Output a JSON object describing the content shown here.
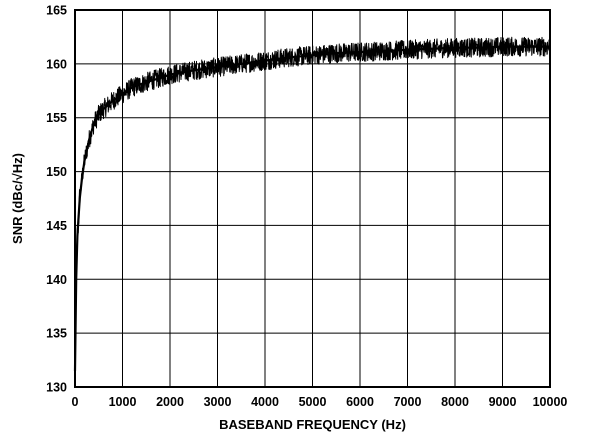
{
  "chart_data": {
    "type": "line",
    "title": "",
    "xlabel": "BASEBAND FREQUENCY (Hz)",
    "ylabel": "SNR (dBc/√Hz)",
    "xlim": [
      0,
      10000
    ],
    "ylim": [
      130,
      165
    ],
    "xticks": [
      0,
      1000,
      2000,
      3000,
      4000,
      5000,
      6000,
      7000,
      8000,
      9000,
      10000
    ],
    "yticks": [
      130,
      135,
      140,
      145,
      150,
      155,
      160,
      165
    ],
    "grid": true,
    "line_color": "#000000",
    "series": [
      {
        "x": [
          0,
          25,
          50,
          100,
          150,
          200,
          300,
          400,
          500,
          600,
          700,
          800,
          1000,
          1200,
          1500,
          1800,
          2000,
          2500,
          3000,
          3500,
          4000,
          4500,
          5000,
          5500,
          6000,
          6500,
          7000,
          7500,
          8000,
          8500,
          9000,
          9500,
          10000
        ],
        "y": [
          131.5,
          140,
          144,
          147.5,
          149.5,
          151,
          153,
          154.5,
          155.3,
          155.8,
          156.2,
          156.6,
          157.2,
          157.8,
          158.3,
          158.7,
          159,
          159.4,
          159.7,
          160,
          160.3,
          160.6,
          160.8,
          161,
          161.1,
          161.2,
          161.3,
          161.4,
          161.5,
          161.5,
          161.6,
          161.6,
          161.6
        ]
      }
    ]
  }
}
